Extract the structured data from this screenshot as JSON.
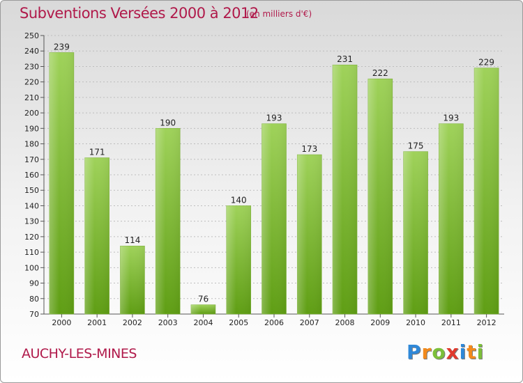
{
  "header": {
    "title": "Subventions Versées 2000 à 2012",
    "unit": "(en milliers d'€)"
  },
  "footer": {
    "place": "AUCHY-LES-MINES",
    "logo_letters": [
      "P",
      "r",
      "o",
      "x",
      "i",
      "t",
      "i"
    ],
    "logo_colors": [
      "#2f88d8",
      "#f28a1d",
      "#7cbf3a",
      "#e03a2e",
      "#2f88d8",
      "#f28a1d",
      "#7cbf3a"
    ]
  },
  "colors": {
    "bar_top": "#9fd25a",
    "bar_bottom": "#5f9e14",
    "axis": "#555555",
    "grid": "#bdbdbd"
  },
  "chart_data": {
    "type": "bar",
    "title": "Subventions Versées 2000 à 2012",
    "subtitle": "(en milliers d'€)",
    "categories": [
      "2000",
      "2001",
      "2002",
      "2003",
      "2004",
      "2005",
      "2006",
      "2007",
      "2008",
      "2009",
      "2010",
      "2011",
      "2012"
    ],
    "values": [
      239,
      171,
      114,
      190,
      76,
      140,
      193,
      173,
      231,
      222,
      175,
      193,
      229
    ],
    "ylim": [
      70,
      250
    ],
    "yticks": [
      70,
      80,
      90,
      100,
      110,
      120,
      130,
      140,
      150,
      160,
      170,
      180,
      190,
      200,
      210,
      220,
      230,
      240,
      250
    ],
    "grid": "horizontal dotted",
    "data_labels": true
  }
}
